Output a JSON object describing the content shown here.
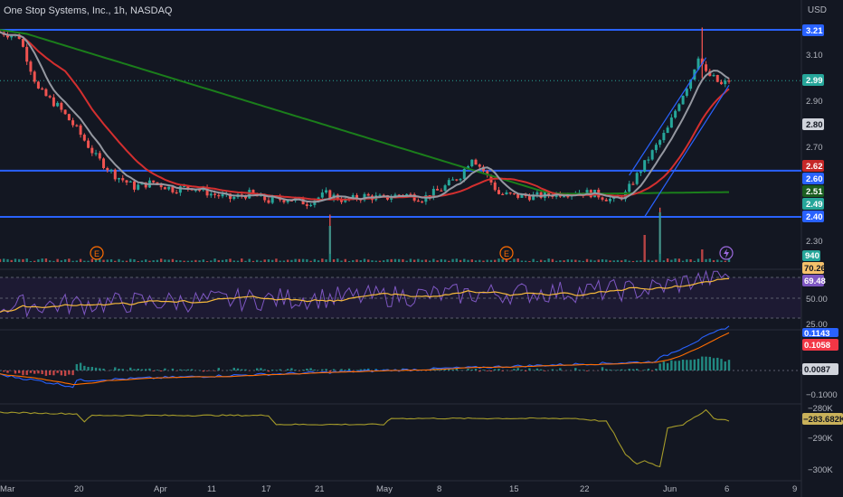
{
  "header": {
    "symbol_title": "One Stop Systems, Inc., 1h, NASDAQ",
    "currency": "USD"
  },
  "colors": {
    "background": "#131722",
    "up": "#26a69a",
    "down": "#ef5350",
    "level_line": "#2962ff",
    "sma_fast": "#9598a1",
    "sma_mid": "#d32f2f",
    "sma_slow": "#1b7e1b",
    "rsi": "#7e57c2",
    "rsi_ma": "#f6b93b",
    "macd": "#2962ff",
    "signal": "#ff6d00",
    "obv": "#a59b2a"
  },
  "chart_data": [
    {
      "type": "candlestick",
      "title": "One Stop Systems, Inc., 1h, NASDAQ",
      "ylabel": "USD",
      "ylim": [
        2.25,
        3.27
      ],
      "x_ticks": [
        "Mar",
        "20",
        "Apr",
        "11",
        "17",
        "21",
        "May",
        "8",
        "15",
        "22",
        "Jun",
        "6",
        "9"
      ],
      "y_ticks": [
        2.3,
        2.5,
        2.6,
        2.7,
        2.9,
        3.1
      ],
      "ohlc_close_path": [
        {
          "x": 0,
          "y": 3.2
        },
        {
          "x": 5,
          "y": 3.18
        },
        {
          "x": 10,
          "y": 2.95
        },
        {
          "x": 15,
          "y": 2.88
        },
        {
          "x": 20,
          "y": 2.78
        },
        {
          "x": 25,
          "y": 2.66
        },
        {
          "x": 30,
          "y": 2.58
        },
        {
          "x": 35,
          "y": 2.53
        },
        {
          "x": 40,
          "y": 2.55
        },
        {
          "x": 45,
          "y": 2.52
        },
        {
          "x": 50,
          "y": 2.53
        },
        {
          "x": 55,
          "y": 2.5
        },
        {
          "x": 60,
          "y": 2.48
        },
        {
          "x": 65,
          "y": 2.5
        },
        {
          "x": 70,
          "y": 2.47
        },
        {
          "x": 75,
          "y": 2.48
        },
        {
          "x": 80,
          "y": 2.46
        },
        {
          "x": 85,
          "y": 2.5
        },
        {
          "x": 90,
          "y": 2.47
        },
        {
          "x": 95,
          "y": 2.49
        },
        {
          "x": 100,
          "y": 2.48
        },
        {
          "x": 105,
          "y": 2.5
        },
        {
          "x": 110,
          "y": 2.48
        },
        {
          "x": 115,
          "y": 2.52
        },
        {
          "x": 120,
          "y": 2.58
        },
        {
          "x": 123,
          "y": 2.66
        },
        {
          "x": 126,
          "y": 2.6
        },
        {
          "x": 130,
          "y": 2.5
        },
        {
          "x": 135,
          "y": 2.49
        },
        {
          "x": 140,
          "y": 2.49
        },
        {
          "x": 145,
          "y": 2.5
        },
        {
          "x": 150,
          "y": 2.51
        },
        {
          "x": 155,
          "y": 2.5
        },
        {
          "x": 160,
          "y": 2.47
        },
        {
          "x": 163,
          "y": 2.5
        },
        {
          "x": 166,
          "y": 2.58
        },
        {
          "x": 170,
          "y": 2.68
        },
        {
          "x": 174,
          "y": 2.78
        },
        {
          "x": 177,
          "y": 2.9
        },
        {
          "x": 180,
          "y": 3.0
        },
        {
          "x": 182,
          "y": 3.1
        },
        {
          "x": 184,
          "y": 3.02
        },
        {
          "x": 186,
          "y": 3.0
        },
        {
          "x": 188,
          "y": 2.97
        },
        {
          "x": 190,
          "y": 2.99
        }
      ],
      "horizontal_levels": [
        3.21,
        2.6,
        2.4
      ],
      "moving_averages": [
        {
          "last": 2.8
        },
        {
          "last": 2.62
        },
        {
          "last": 2.51
        }
      ],
      "last_price": 2.99,
      "price_tags": [
        3.21,
        2.99,
        2.8,
        2.62,
        2.6,
        2.51,
        2.49,
        2.4
      ],
      "volume_last": 940
    },
    {
      "type": "line",
      "name": "RSI",
      "ylim": [
        20,
        80
      ],
      "y_ticks": [
        50,
        25
      ],
      "levels": [
        70,
        30
      ],
      "last_values": [
        70.26,
        69.48
      ]
    },
    {
      "type": "bar",
      "name": "MACD",
      "y_ticks": [
        -0.1
      ],
      "last_values": [
        0.1143,
        0.1058,
        0.0087
      ]
    },
    {
      "type": "line",
      "name": "OBV",
      "y_ticks": [
        "−280K",
        "−290K",
        "−300K"
      ],
      "last_value": "−283.682K"
    }
  ],
  "labels": {
    "price_ticks": [
      "3.10",
      "2.90",
      "2.70",
      "2.30"
    ],
    "price_tags": [
      "3.21",
      "2.99",
      "2.80",
      "2.62",
      "2.60",
      "2.51",
      "2.49",
      "2.40"
    ],
    "volume_tag": "940",
    "rsi_ticks": [
      "50.00",
      "25.00"
    ],
    "rsi_tags": [
      "70.26",
      "69.48"
    ],
    "macd_ticks": [
      "−0.1000"
    ],
    "macd_tags": [
      "0.1143",
      "0.1058",
      "0.0087"
    ],
    "obv_ticks": [
      "−280K",
      "−290K",
      "−300K"
    ],
    "obv_tag": "−283.682K",
    "time_axis": [
      "Mar",
      "20",
      "Apr",
      "11",
      "17",
      "21",
      "May",
      "8",
      "15",
      "22",
      "Jun",
      "6",
      "9"
    ],
    "earnings_marker": "E"
  }
}
